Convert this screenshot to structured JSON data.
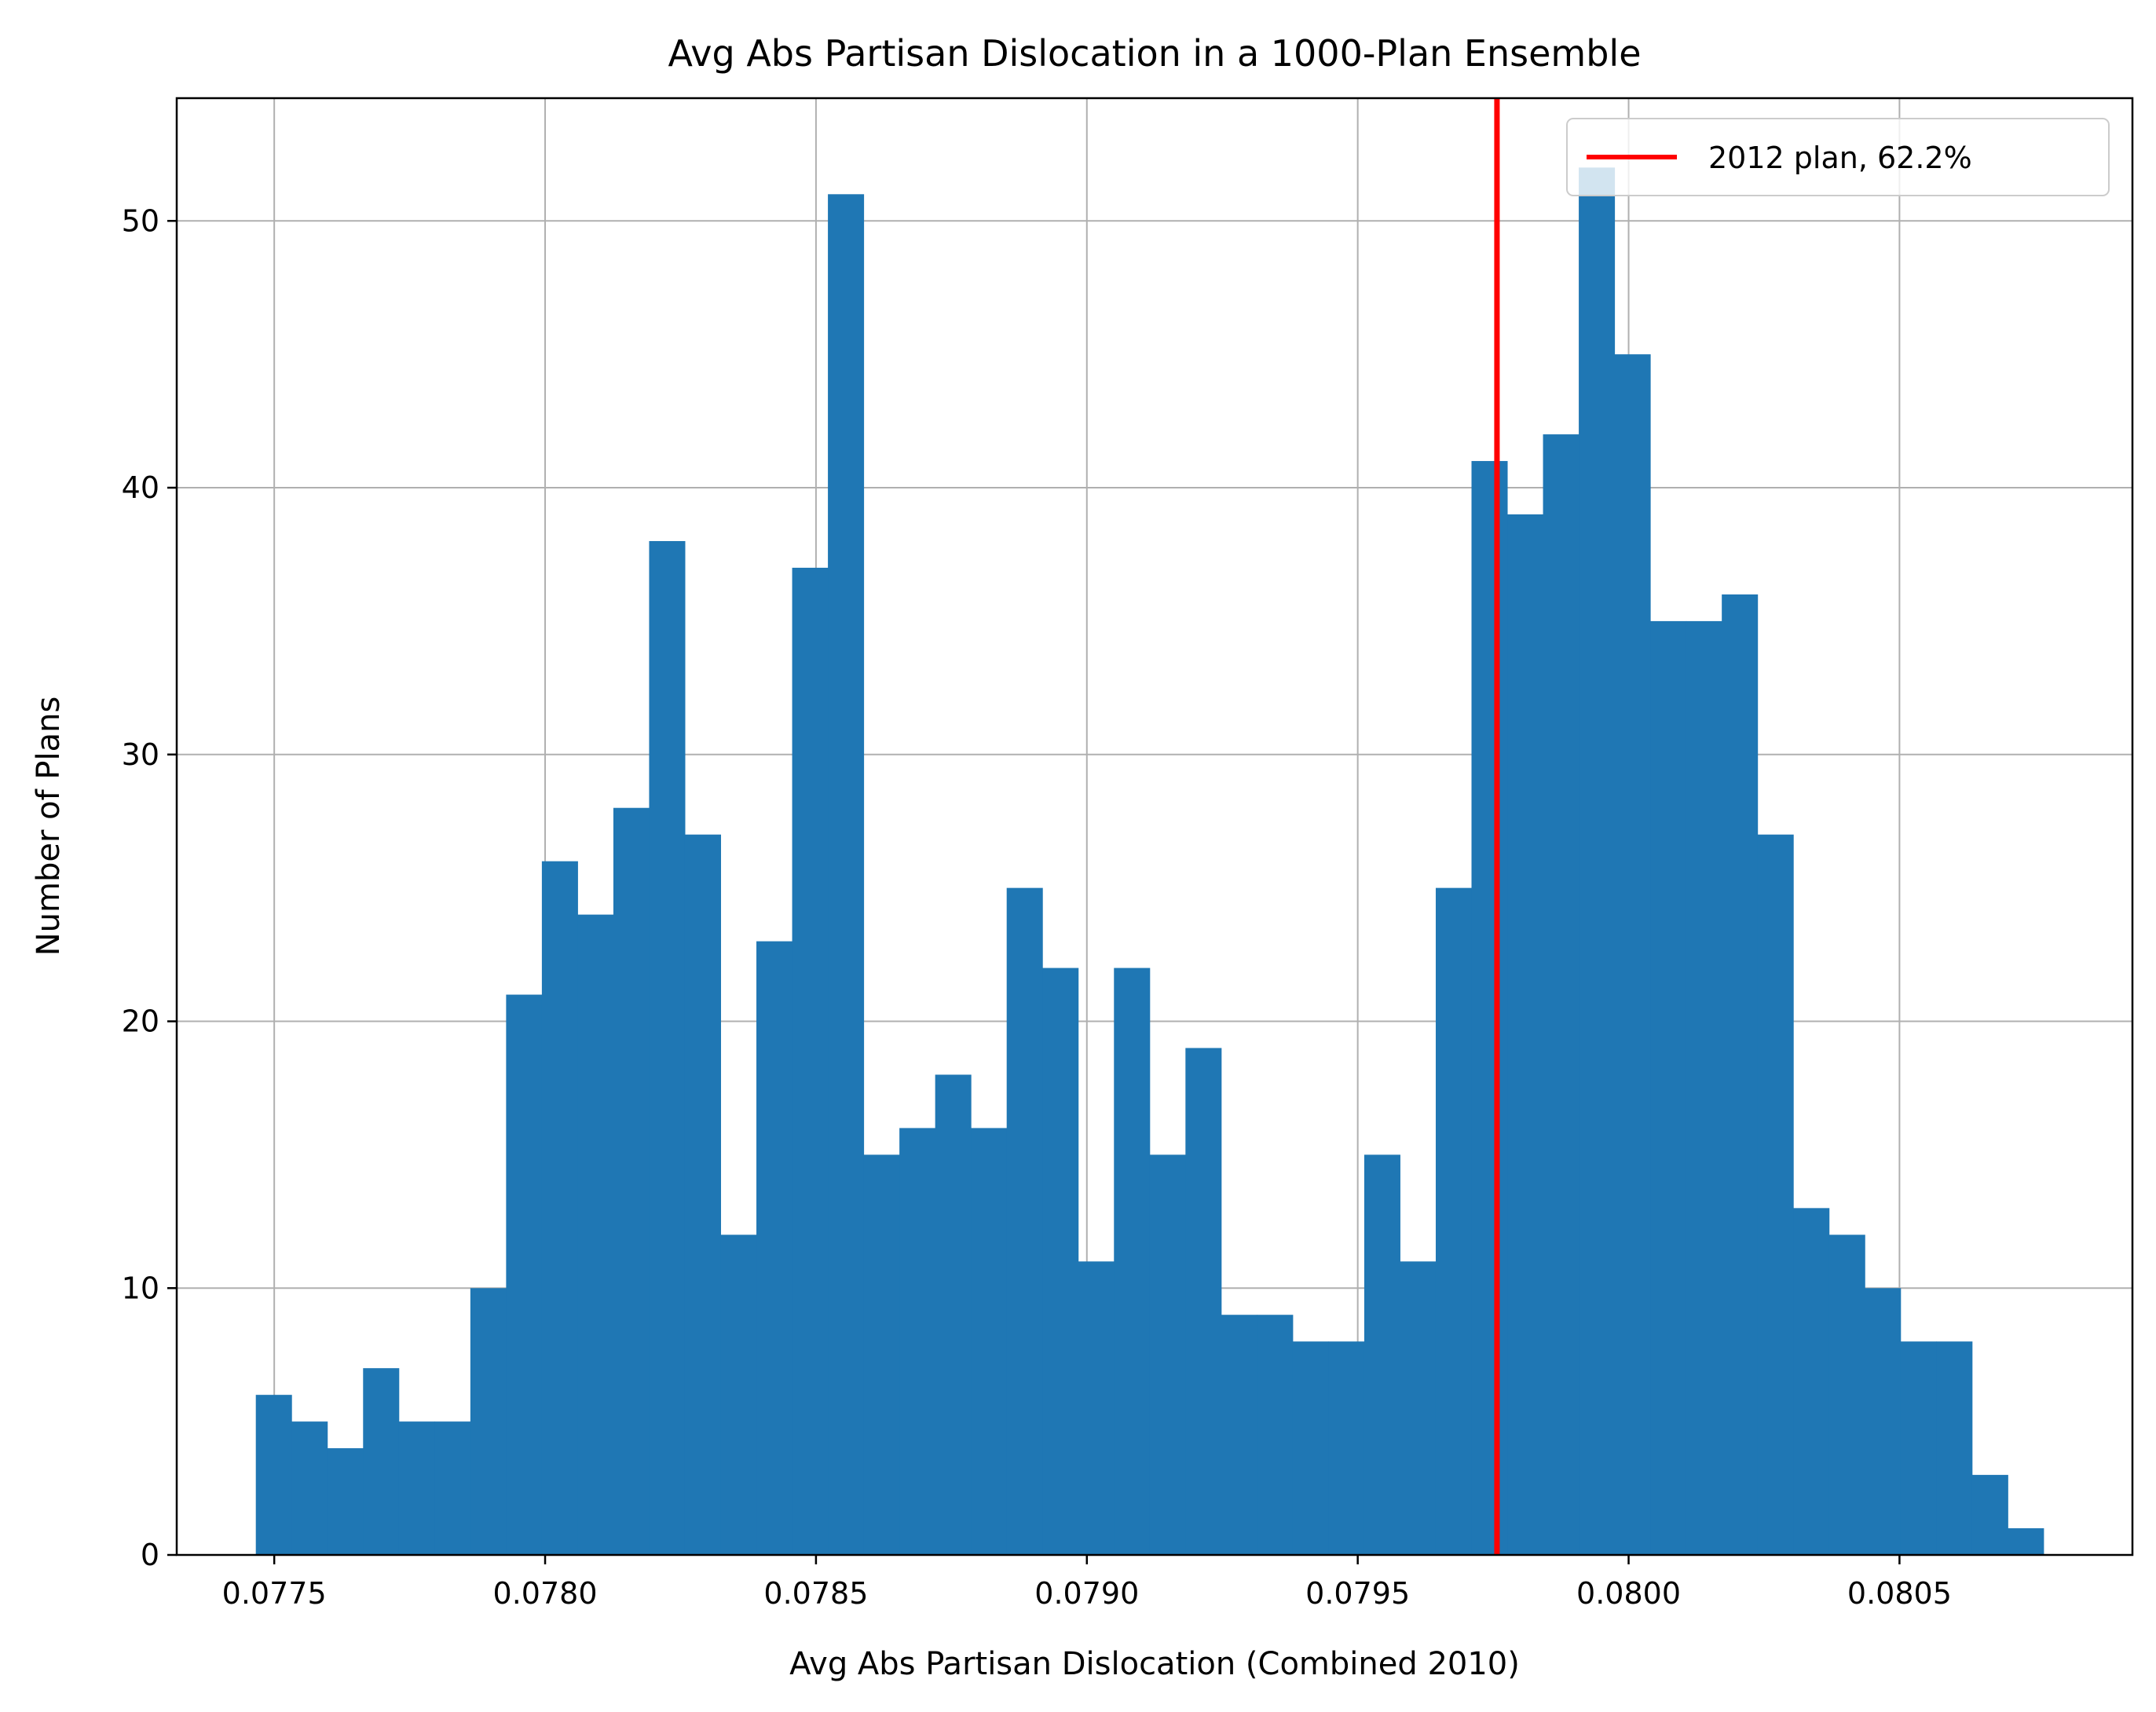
{
  "chart_data": {
    "type": "bar",
    "title": "Avg Abs Partisan Dislocation in a 1000-Plan Ensemble",
    "xlabel": "Avg Abs Partisan Dislocation (Combined 2010)",
    "ylabel": "Number of Plans",
    "xlim": [
      0.07732,
      0.08093
    ],
    "ylim": [
      0,
      54.6
    ],
    "grid": true,
    "legend_position": "top-right",
    "x_ticks": [
      {
        "value": 0.0775,
        "label": "0.0775"
      },
      {
        "value": 0.078,
        "label": "0.0780"
      },
      {
        "value": 0.0785,
        "label": "0.0785"
      },
      {
        "value": 0.079,
        "label": "0.0790"
      },
      {
        "value": 0.0795,
        "label": "0.0795"
      },
      {
        "value": 0.08,
        "label": "0.0800"
      },
      {
        "value": 0.0805,
        "label": "0.0805"
      }
    ],
    "y_ticks": [
      {
        "value": 0,
        "label": "0"
      },
      {
        "value": 10,
        "label": "10"
      },
      {
        "value": 20,
        "label": "20"
      },
      {
        "value": 30,
        "label": "30"
      },
      {
        "value": 40,
        "label": "40"
      },
      {
        "value": 50,
        "label": "50"
      }
    ],
    "bin_start": 0.077466,
    "bin_width": 6.6e-05,
    "counts": [
      6,
      5,
      4,
      7,
      5,
      5,
      10,
      21,
      26,
      24,
      28,
      38,
      27,
      12,
      23,
      37,
      51,
      15,
      16,
      18,
      16,
      25,
      22,
      11,
      22,
      15,
      19,
      9,
      9,
      8,
      8,
      15,
      11,
      25,
      41,
      39,
      42,
      52,
      45,
      35,
      35,
      36,
      27,
      13,
      12,
      10,
      8,
      8,
      3,
      1
    ],
    "bar_color": "#1f77b4",
    "reference_line": {
      "x": 0.079757,
      "color": "#ff0000",
      "label": "2012 plan, 62.2%"
    }
  }
}
